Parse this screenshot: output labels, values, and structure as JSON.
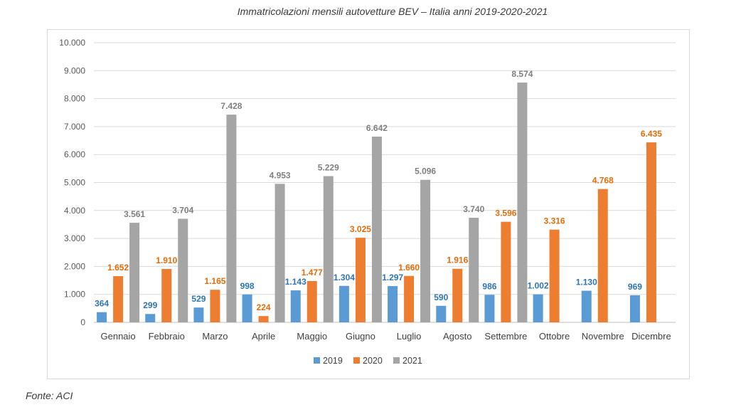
{
  "title": "Immatricolazioni mensili autovetture BEV – Italia anni 2019-2020-2021",
  "source": "Fonte: ACI",
  "chart_data": {
    "type": "bar",
    "title": "Immatricolazioni mensili autovetture BEV – Italia anni 2019-2020-2021",
    "xlabel": "",
    "ylabel": "",
    "ylim": [
      0,
      10000
    ],
    "yticks": [
      "0",
      "1.000",
      "2.000",
      "3.000",
      "4.000",
      "5.000",
      "6.000",
      "7.000",
      "8.000",
      "9.000",
      "10.000"
    ],
    "grid": true,
    "legend_position": "bottom",
    "categories": [
      "Gennaio",
      "Febbraio",
      "Marzo",
      "Aprile",
      "Maggio",
      "Giugno",
      "Luglio",
      "Agosto",
      "Settembre",
      "Ottobre",
      "Novembre",
      "Dicembre"
    ],
    "series": [
      {
        "name": "2019",
        "color": "#5b9bd5",
        "label_color": "#2e75b6",
        "values": [
          364,
          299,
          529,
          998,
          1143,
          1304,
          1297,
          590,
          986,
          1002,
          1130,
          969
        ],
        "labels": [
          "364",
          "299",
          "529",
          "998",
          "1.143",
          "1.304",
          "1.297",
          "590",
          "986",
          "1.002",
          "1.130",
          "969"
        ]
      },
      {
        "name": "2020",
        "color": "#ed7d31",
        "label_color": "#e46c0a",
        "values": [
          1652,
          1910,
          1165,
          224,
          1477,
          3025,
          1660,
          1916,
          3596,
          3316,
          4768,
          6435
        ],
        "labels": [
          "1.652",
          "1.910",
          "1.165",
          "224",
          "1.477",
          "3.025",
          "1.660",
          "1.916",
          "3.596",
          "3.316",
          "4.768",
          "6.435"
        ]
      },
      {
        "name": "2021",
        "color": "#a5a5a5",
        "label_color": "#7f7f7f",
        "values": [
          3561,
          3704,
          7428,
          4953,
          5229,
          6642,
          5096,
          3740,
          8574,
          null,
          null,
          null
        ],
        "labels": [
          "3.561",
          "3.704",
          "7.428",
          "4.953",
          "5.229",
          "6.642",
          "5.096",
          "3.740",
          "8.574",
          "",
          "",
          ""
        ]
      }
    ]
  }
}
